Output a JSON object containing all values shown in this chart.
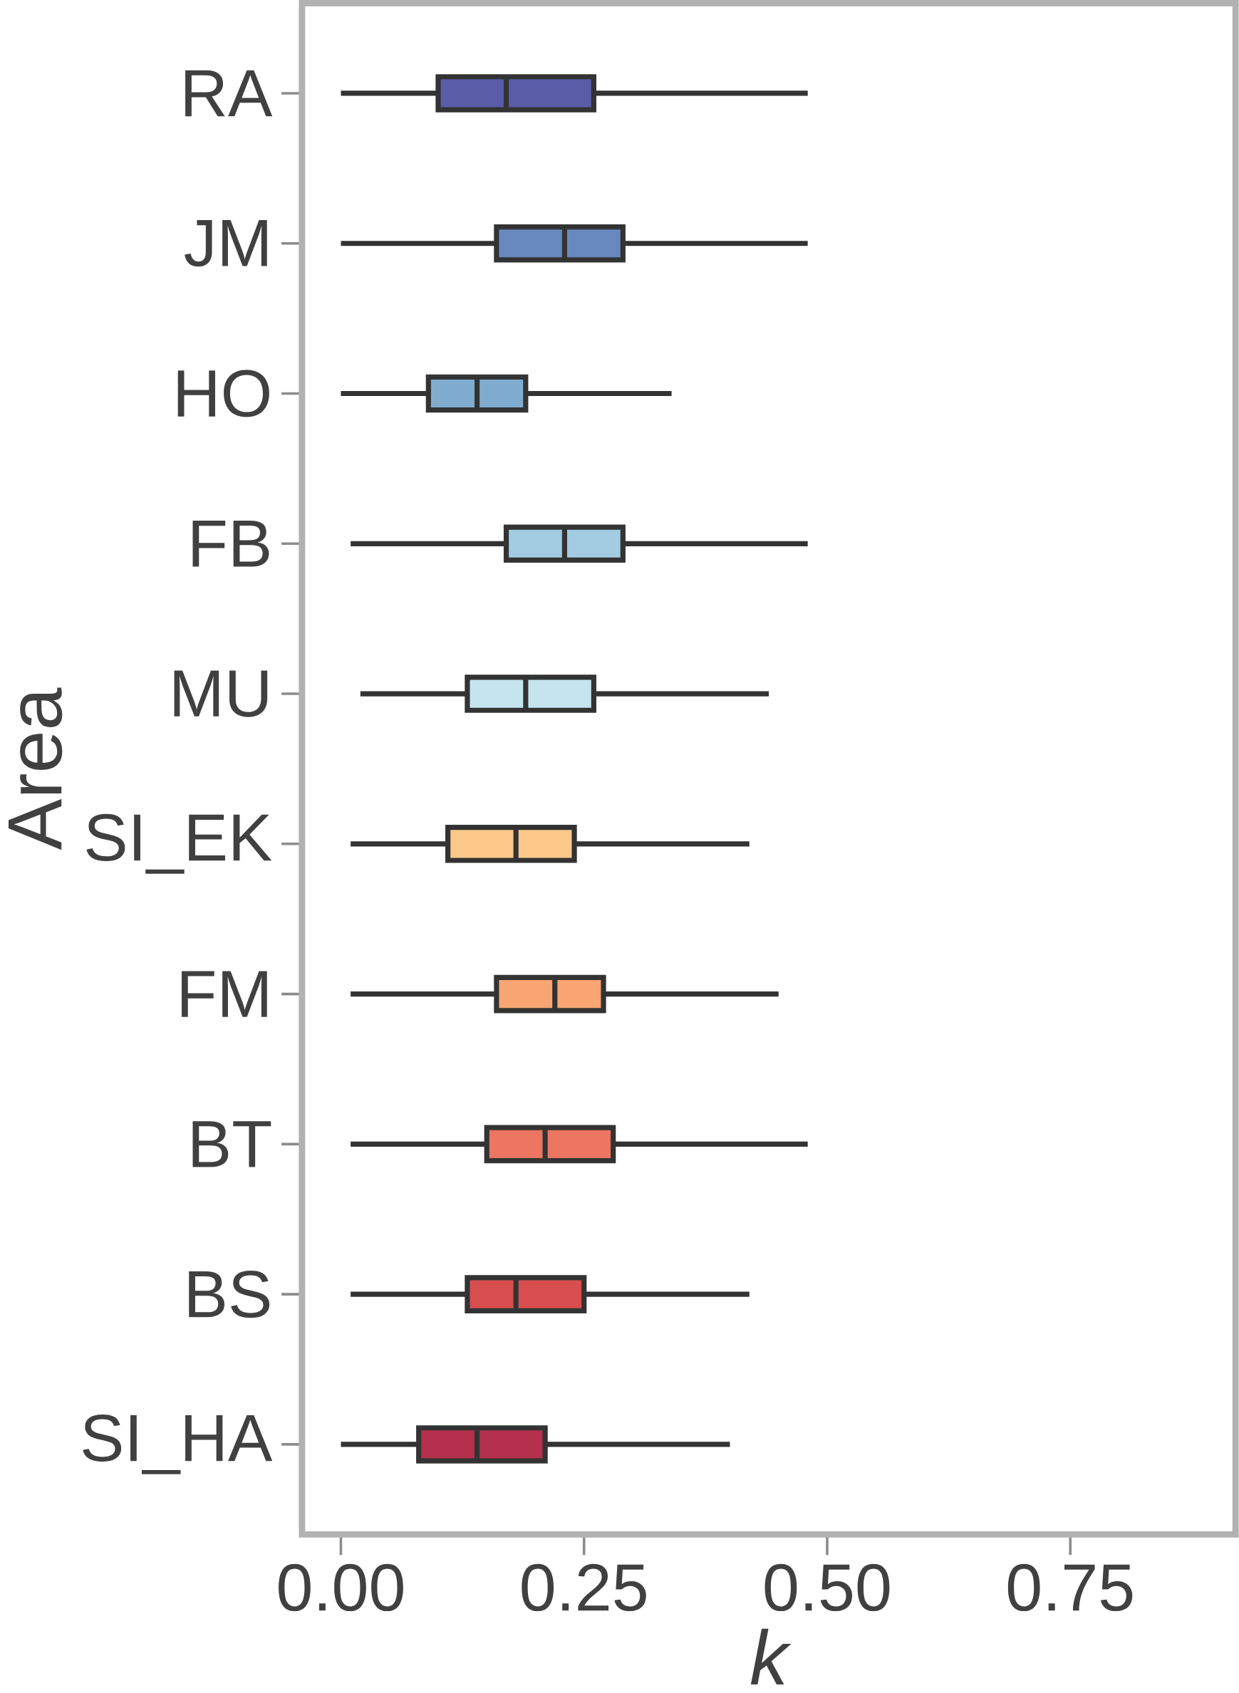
{
  "chart_data": {
    "type": "box",
    "orientation": "horizontal",
    "xlabel": "k",
    "ylabel": "Area",
    "categories": [
      "RA",
      "JM",
      "HO",
      "FB",
      "MU",
      "SI_EK",
      "FM",
      "BT",
      "BS",
      "SI_HA"
    ],
    "colors": [
      "#5a5ca8",
      "#6889bf",
      "#80adcf",
      "#a3cbe1",
      "#c6e4ee",
      "#fdc98a",
      "#f9a573",
      "#ec7662",
      "#d94e4f",
      "#b5304d"
    ],
    "boxes": [
      {
        "low": 0.0,
        "q1": 0.1,
        "median": 0.17,
        "q3": 0.26,
        "high": 0.48
      },
      {
        "low": 0.0,
        "q1": 0.16,
        "median": 0.23,
        "q3": 0.29,
        "high": 0.48
      },
      {
        "low": 0.0,
        "q1": 0.09,
        "median": 0.14,
        "q3": 0.19,
        "high": 0.34
      },
      {
        "low": 0.01,
        "q1": 0.17,
        "median": 0.23,
        "q3": 0.29,
        "high": 0.48
      },
      {
        "low": 0.02,
        "q1": 0.13,
        "median": 0.19,
        "q3": 0.26,
        "high": 0.44
      },
      {
        "low": 0.01,
        "q1": 0.11,
        "median": 0.18,
        "q3": 0.24,
        "high": 0.42
      },
      {
        "low": 0.01,
        "q1": 0.16,
        "median": 0.22,
        "q3": 0.27,
        "high": 0.45
      },
      {
        "low": 0.01,
        "q1": 0.15,
        "median": 0.21,
        "q3": 0.28,
        "high": 0.48
      },
      {
        "low": 0.01,
        "q1": 0.13,
        "median": 0.18,
        "q3": 0.25,
        "high": 0.42
      },
      {
        "low": 0.0,
        "q1": 0.08,
        "median": 0.14,
        "q3": 0.21,
        "high": 0.4
      }
    ],
    "xlim": [
      -0.04,
      0.92
    ],
    "xticks": [
      {
        "value": 0,
        "label": "0.00"
      },
      {
        "value": 0.25,
        "label": "0.25"
      },
      {
        "value": 0.5,
        "label": "0.50"
      },
      {
        "value": 0.75,
        "label": "0.75"
      }
    ],
    "grid": false
  }
}
